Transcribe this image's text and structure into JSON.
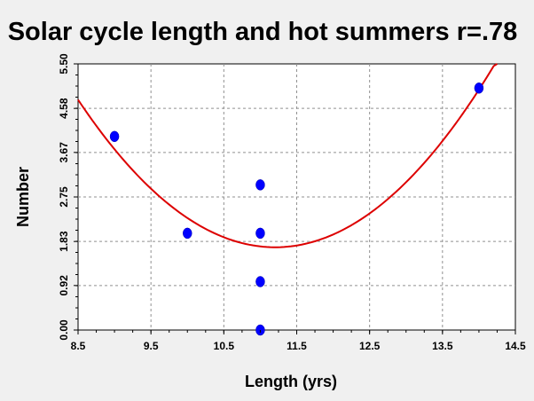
{
  "chart_data": {
    "type": "scatter",
    "title": "Solar cycle length and hot summers  r=.78",
    "xlabel": "Length (yrs)",
    "ylabel": "Number",
    "xlim": [
      8.5,
      14.5
    ],
    "ylim": [
      0.0,
      5.5
    ],
    "x_ticks": [
      "8.5",
      "9.5",
      "10.5",
      "11.5",
      "12.5",
      "13.5",
      "14.5"
    ],
    "y_ticks": [
      "0.00",
      "0.92",
      "1.83",
      "2.75",
      "3.67",
      "4.58",
      "5.50"
    ],
    "grid": true,
    "points": [
      {
        "x": 9,
        "y": 4
      },
      {
        "x": 10,
        "y": 2
      },
      {
        "x": 11,
        "y": 3
      },
      {
        "x": 11,
        "y": 2
      },
      {
        "x": 11,
        "y": 1
      },
      {
        "x": 11,
        "y": 0
      },
      {
        "x": 14,
        "y": 5
      }
    ],
    "fit_curve": {
      "type": "quadratic",
      "points": [
        {
          "x": 8.5,
          "y": 4.7
        },
        {
          "x": 9.5,
          "y": 2.98
        },
        {
          "x": 10.5,
          "y": 1.99
        },
        {
          "x": 11.2,
          "y": 1.71
        },
        {
          "x": 12.5,
          "y": 2.28
        },
        {
          "x": 13.5,
          "y": 3.93
        },
        {
          "x": 14.25,
          "y": 5.61
        }
      ]
    },
    "colors": {
      "background": "#f0f0f0",
      "plot_background": "#ffffff",
      "grid": "#909090",
      "points": "#0000ff",
      "fit_line": "#dd0000"
    }
  }
}
